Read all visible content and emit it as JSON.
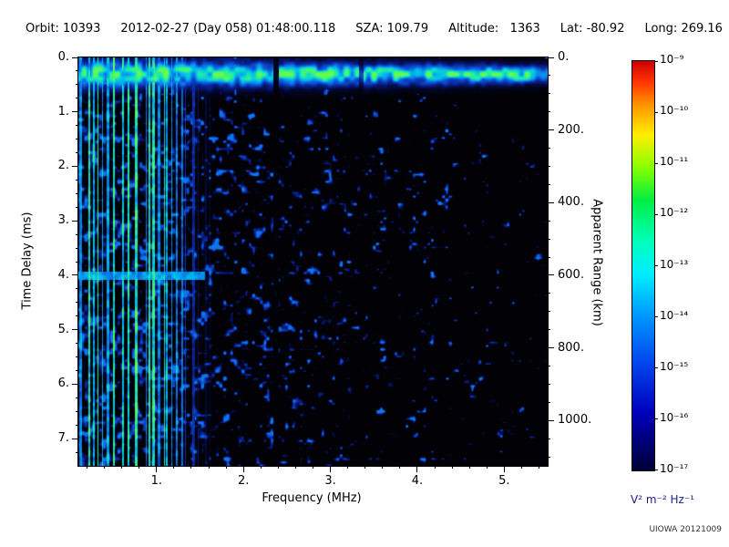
{
  "header": {
    "orbit": "Orbit: 10393",
    "datetime": "2012-02-27 (Day 058) 01:48:00.118",
    "sza": "SZA: 109.79",
    "altitude": "Altitude:   1363",
    "lat": "Lat: -80.92",
    "long": "Long: 269.16"
  },
  "credit": "UIOWA 20121009",
  "chart_data": {
    "type": "heatmap",
    "x_axis": {
      "label": "Frequency (MHz)",
      "min": 0.1,
      "max": 5.5,
      "minor_step": 0.2,
      "major_ticks": [
        {
          "value": 1,
          "label": "1."
        },
        {
          "value": 2,
          "label": "2."
        },
        {
          "value": 3,
          "label": "3."
        },
        {
          "value": 4,
          "label": "4."
        },
        {
          "value": 5,
          "label": "5."
        }
      ]
    },
    "y_axis_left": {
      "label": "Time Delay (ms)",
      "min": 0,
      "max": 7.5,
      "minor_step": 0.25,
      "major_ticks": [
        {
          "value": 0,
          "label": "0."
        },
        {
          "value": 1,
          "label": "1."
        },
        {
          "value": 2,
          "label": "2."
        },
        {
          "value": 3,
          "label": "3."
        },
        {
          "value": 4,
          "label": "4."
        },
        {
          "value": 5,
          "label": "5."
        },
        {
          "value": 6,
          "label": "6."
        },
        {
          "value": 7,
          "label": "7."
        }
      ]
    },
    "y_axis_right": {
      "label": "Apparent Range (km)",
      "km_to_ms": 0.0066666667,
      "minor_step_km": 50,
      "major_ticks": [
        {
          "value": 0,
          "label": "0."
        },
        {
          "value": 200,
          "label": "200."
        },
        {
          "value": 400,
          "label": "400."
        },
        {
          "value": 600,
          "label": "600."
        },
        {
          "value": 800,
          "label": "800."
        },
        {
          "value": 1000,
          "label": "1000."
        }
      ]
    },
    "colorbar": {
      "unit": "V² m⁻² Hz⁻¹",
      "scale": "log",
      "max_label": "10⁻⁹",
      "min_label": "10⁻¹⁷",
      "ticks": [
        "10⁻⁹",
        "10⁻¹⁰",
        "10⁻¹¹",
        "10⁻¹²",
        "10⁻¹³",
        "10⁻¹⁴",
        "10⁻¹⁵",
        "10⁻¹⁶",
        "10⁻¹⁷"
      ],
      "gradient": [
        {
          "pos": 0.0,
          "color": "#cc0000"
        },
        {
          "pos": 0.05,
          "color": "#ff3300"
        },
        {
          "pos": 0.11,
          "color": "#ff9900"
        },
        {
          "pos": 0.18,
          "color": "#ffee00"
        },
        {
          "pos": 0.26,
          "color": "#88ff00"
        },
        {
          "pos": 0.34,
          "color": "#00ee44"
        },
        {
          "pos": 0.44,
          "color": "#00ffbb"
        },
        {
          "pos": 0.52,
          "color": "#00eeff"
        },
        {
          "pos": 0.62,
          "color": "#0099ff"
        },
        {
          "pos": 0.74,
          "color": "#0044ee"
        },
        {
          "pos": 0.86,
          "color": "#0000bb"
        },
        {
          "pos": 1.0,
          "color": "#000033"
        }
      ]
    },
    "colormap": [
      {
        "v": 0.0,
        "rgb": [
          1,
          1,
          6
        ]
      },
      {
        "v": 0.12,
        "rgb": [
          4,
          8,
          55
        ]
      },
      {
        "v": 0.3,
        "rgb": [
          8,
          35,
          150
        ]
      },
      {
        "v": 0.5,
        "rgb": [
          15,
          95,
          225
        ]
      },
      {
        "v": 0.68,
        "rgb": [
          0,
          185,
          240
        ]
      },
      {
        "v": 0.84,
        "rgb": [
          30,
          235,
          170
        ]
      },
      {
        "v": 1.0,
        "rgb": [
          100,
          250,
          80
        ]
      }
    ],
    "features": {
      "seed": 20121009,
      "band_center_ms": 0.3,
      "band_sigma_ms": 0.11,
      "stripe_max_freq_mhz": 1.65,
      "echo_line_delay_ms": 4.0,
      "echo_line_max_freq_mhz": 1.55,
      "dark_columns": [
        {
          "f_mhz": 2.37,
          "attenuation": 0.1
        },
        {
          "f_mhz": 3.35,
          "attenuation": 0.45
        }
      ],
      "description": "Bright cyan-green horizontal surface-echo band near 0.3 ms delay across all frequencies; dense vertical interference stripes below ~1.65 MHz spanning the full delay range; diffuse blue speckle noise whose density decreases with frequency; faint horizontal echo line near 4 ms below ~1.5 MHz; dark vertical gaps near 2.37 and 3.35 MHz."
    }
  }
}
